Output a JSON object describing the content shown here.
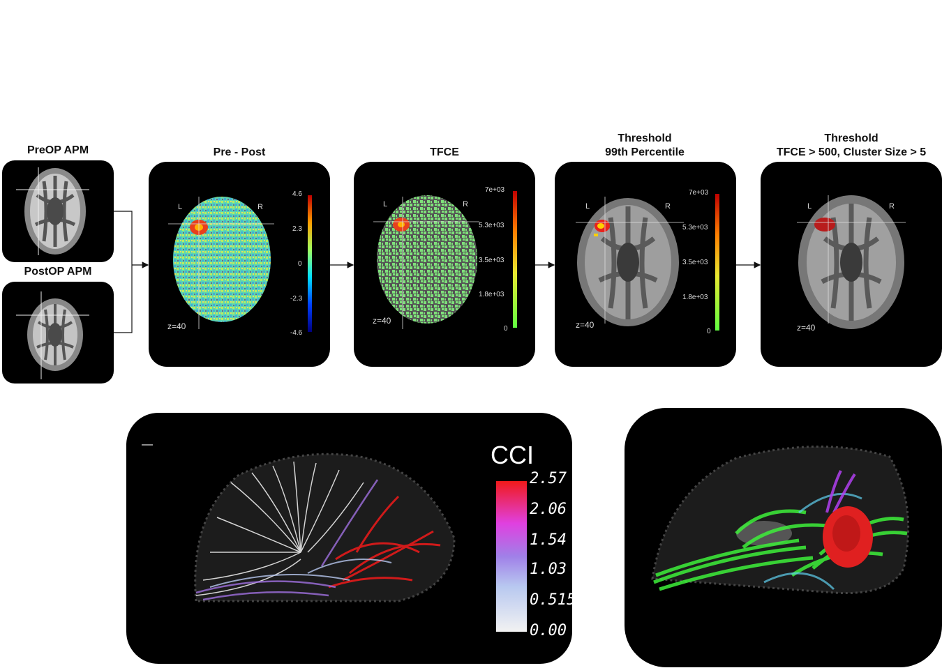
{
  "pipeline": {
    "preop_title": "PreOP APM",
    "postop_title": "PostOP APM",
    "prepost_title": "Pre - Post",
    "tfce_title": "TFCE",
    "thresh1_title_line1": "Threshold",
    "thresh1_title_line2": "99th Percentile",
    "thresh2_title_line1": "Threshold",
    "thresh2_title_line2": "TFCE > 500, Cluster Size > 5"
  },
  "labels": {
    "left": "L",
    "right": "R",
    "slice": "z=40"
  },
  "prepost_colorbar": [
    "4.6",
    "2.3",
    "0",
    "-2.3",
    "-4.6"
  ],
  "tfce_colorbar": [
    "7e+03",
    "5.3e+03",
    "3.5e+03",
    "1.8e+03",
    "0"
  ],
  "thresh_colorbar": [
    "7e+03",
    "5.3e+03",
    "3.5e+03",
    "1.8e+03",
    "0"
  ],
  "cci": {
    "title": "CCI",
    "ticks": [
      "2.57",
      "2.06",
      "1.54",
      "1.03",
      "0.515",
      "0.00"
    ]
  },
  "colors": {
    "panel_bg": "#000000",
    "noise_green": "#7ee07a",
    "hot_red": "#e8231c",
    "tract_green": "#3ef03a"
  }
}
